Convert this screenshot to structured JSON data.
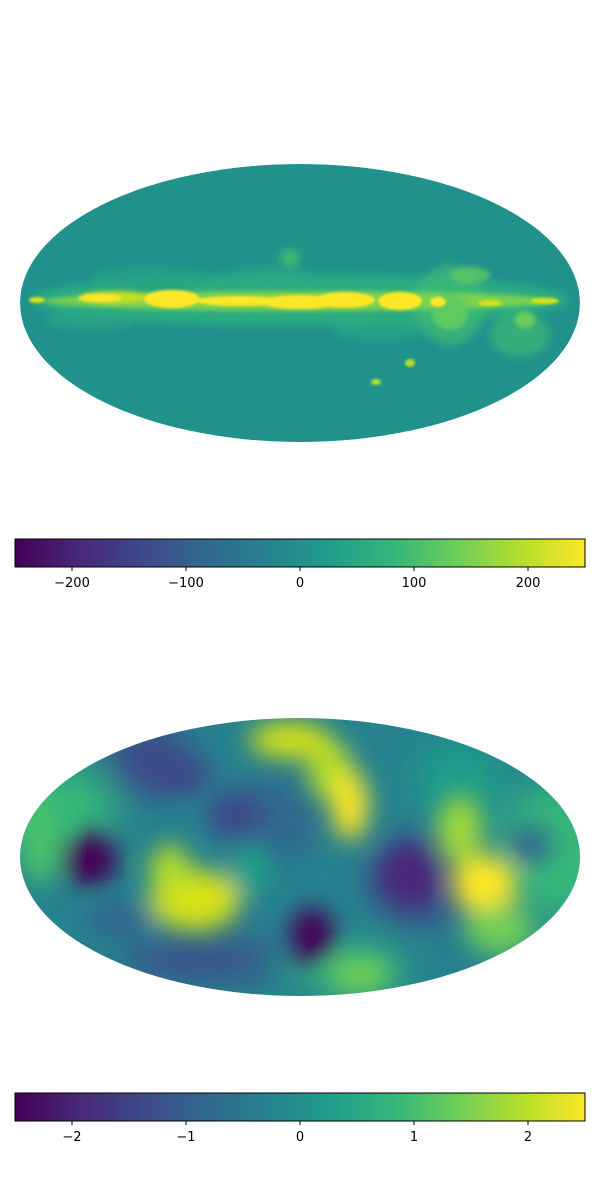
{
  "chart_data": [
    {
      "type": "heatmap",
      "projection": "mollweide",
      "colormap": "viridis",
      "colorbar": {
        "orientation": "horizontal",
        "range": [
          -250,
          250
        ],
        "ticks": [
          -200,
          -100,
          0,
          100,
          200
        ],
        "tick_labels": [
          "−200",
          "−100",
          "0",
          "100",
          "200"
        ]
      }
    },
    {
      "type": "heatmap",
      "projection": "mollweide",
      "colormap": "viridis",
      "colorbar": {
        "orientation": "horizontal",
        "range": [
          -2.5,
          2.5
        ],
        "ticks": [
          -2,
          -1,
          0,
          1,
          2
        ],
        "tick_labels": [
          "−2",
          "−1",
          "0",
          "1",
          "2"
        ]
      }
    }
  ],
  "colors": {
    "viridis": [
      "#440154",
      "#482878",
      "#3e4989",
      "#31688e",
      "#26828e",
      "#1f9e89",
      "#35b779",
      "#6ece58",
      "#b5de2b",
      "#fde725"
    ]
  }
}
